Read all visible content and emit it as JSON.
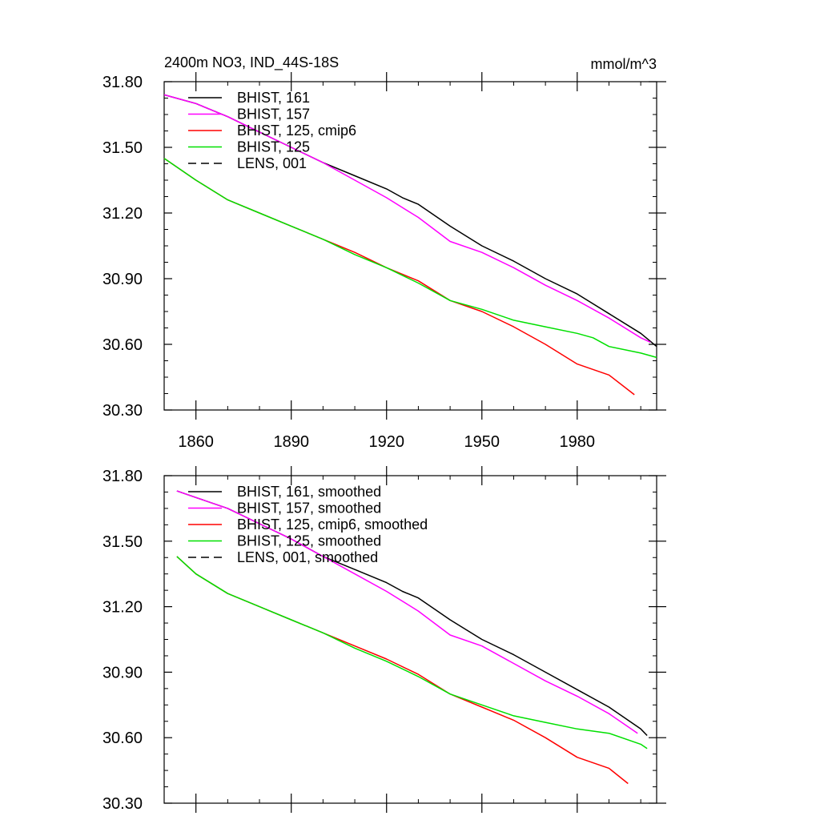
{
  "header": {
    "title": "2400m NO3, IND_44S-18S",
    "units": "mmol/m^3"
  },
  "colors": {
    "BHIST_161": "#000000",
    "BHIST_157": "#ff00ff",
    "BHIST_125_cmip6": "#ff0000",
    "BHIST_125": "#00e000",
    "LENS_001": "#000000"
  },
  "chart_data": [
    {
      "type": "line",
      "title": "",
      "xlabel": "",
      "ylabel": "",
      "xlim": [
        1850,
        2005
      ],
      "ylim": [
        30.3,
        31.8
      ],
      "xticks": [
        1860,
        1890,
        1920,
        1950,
        1980
      ],
      "xtick_labels": [
        "1860",
        "1890",
        "1920",
        "1950",
        "1980"
      ],
      "yticks": [
        30.3,
        30.6,
        30.9,
        31.2,
        31.5,
        31.8
      ],
      "ytick_labels": [
        "30.30",
        "30.60",
        "30.90",
        "31.20",
        "31.50",
        "31.80"
      ],
      "grid": false,
      "legend_position": "top-left",
      "series": [
        {
          "name": "BHIST, 161",
          "color": "#000000",
          "dash": "solid",
          "x": [
            1850,
            1860,
            1870,
            1880,
            1890,
            1900,
            1910,
            1920,
            1925,
            1930,
            1940,
            1950,
            1960,
            1970,
            1980,
            1990,
            2000,
            2005
          ],
          "y": [
            31.74,
            31.7,
            31.64,
            31.57,
            31.5,
            31.43,
            31.37,
            31.31,
            31.27,
            31.24,
            31.14,
            31.05,
            30.98,
            30.9,
            30.83,
            30.74,
            30.65,
            30.59
          ]
        },
        {
          "name": "BHIST, 157",
          "color": "#ff00ff",
          "dash": "solid",
          "x": [
            1850,
            1860,
            1870,
            1880,
            1890,
            1900,
            1910,
            1920,
            1930,
            1940,
            1950,
            1960,
            1970,
            1980,
            1990,
            2000,
            2003
          ],
          "y": [
            31.74,
            31.7,
            31.64,
            31.57,
            31.5,
            31.43,
            31.35,
            31.27,
            31.18,
            31.07,
            31.02,
            30.95,
            30.87,
            30.8,
            30.72,
            30.63,
            30.61
          ]
        },
        {
          "name": "BHIST, 125, cmip6",
          "color": "#ff0000",
          "dash": "solid",
          "x": [
            1850,
            1860,
            1870,
            1880,
            1890,
            1900,
            1910,
            1920,
            1930,
            1940,
            1950,
            1960,
            1970,
            1980,
            1990,
            1998
          ],
          "y": [
            31.45,
            31.35,
            31.26,
            31.2,
            31.14,
            31.08,
            31.02,
            30.95,
            30.89,
            30.8,
            30.75,
            30.68,
            30.6,
            30.51,
            30.46,
            30.37
          ]
        },
        {
          "name": "BHIST, 125",
          "color": "#00e000",
          "dash": "solid",
          "x": [
            1850,
            1860,
            1870,
            1880,
            1890,
            1900,
            1910,
            1920,
            1930,
            1940,
            1945,
            1950,
            1960,
            1970,
            1980,
            1985,
            1990,
            2000,
            2005
          ],
          "y": [
            31.45,
            31.35,
            31.26,
            31.2,
            31.14,
            31.08,
            31.01,
            30.95,
            30.88,
            30.8,
            30.78,
            30.76,
            30.71,
            30.68,
            30.65,
            30.63,
            30.59,
            30.56,
            30.54
          ]
        },
        {
          "name": "LENS, 001",
          "color": "#000000",
          "dash": "dashed",
          "x": [],
          "y": []
        }
      ]
    },
    {
      "type": "line",
      "title": "",
      "xlabel": "",
      "ylabel": "",
      "xlim": [
        1850,
        2005
      ],
      "ylim": [
        30.3,
        31.8
      ],
      "xticks": [
        1860,
        1890,
        1920,
        1950,
        1980
      ],
      "xtick_labels": [],
      "yticks": [
        30.3,
        30.6,
        30.9,
        31.2,
        31.5,
        31.8
      ],
      "ytick_labels": [
        "30.30",
        "30.60",
        "30.90",
        "31.20",
        "31.50",
        "31.80"
      ],
      "grid": false,
      "legend_position": "top-left",
      "series": [
        {
          "name": "BHIST, 161, smoothed",
          "color": "#000000",
          "dash": "solid",
          "x": [
            1854,
            1860,
            1870,
            1880,
            1890,
            1900,
            1910,
            1920,
            1925,
            1930,
            1940,
            1950,
            1960,
            1970,
            1980,
            1990,
            2000,
            2002
          ],
          "y": [
            31.73,
            31.7,
            31.65,
            31.58,
            31.51,
            31.43,
            31.37,
            31.31,
            31.27,
            31.24,
            31.14,
            31.05,
            30.98,
            30.9,
            30.82,
            30.74,
            30.64,
            30.61
          ]
        },
        {
          "name": "BHIST, 157, smoothed",
          "color": "#ff00ff",
          "dash": "solid",
          "x": [
            1854,
            1860,
            1870,
            1880,
            1890,
            1900,
            1910,
            1920,
            1930,
            1940,
            1950,
            1960,
            1970,
            1980,
            1990,
            1999
          ],
          "y": [
            31.73,
            31.7,
            31.65,
            31.58,
            31.51,
            31.43,
            31.35,
            31.27,
            31.18,
            31.07,
            31.02,
            30.94,
            30.86,
            30.79,
            30.71,
            30.62
          ]
        },
        {
          "name": "BHIST, 125, cmip6, smoothed",
          "color": "#ff0000",
          "dash": "solid",
          "x": [
            1854,
            1860,
            1870,
            1880,
            1890,
            1900,
            1910,
            1920,
            1930,
            1940,
            1950,
            1960,
            1970,
            1980,
            1990,
            1996
          ],
          "y": [
            31.43,
            31.35,
            31.26,
            31.2,
            31.14,
            31.08,
            31.02,
            30.96,
            30.89,
            30.8,
            30.74,
            30.68,
            30.6,
            30.51,
            30.46,
            30.39
          ]
        },
        {
          "name": "BHIST, 125, smoothed",
          "color": "#00e000",
          "dash": "solid",
          "x": [
            1854,
            1860,
            1870,
            1880,
            1890,
            1900,
            1910,
            1920,
            1930,
            1940,
            1950,
            1960,
            1970,
            1980,
            1990,
            2000,
            2002
          ],
          "y": [
            31.43,
            31.35,
            31.26,
            31.2,
            31.14,
            31.08,
            31.01,
            30.95,
            30.88,
            30.8,
            30.75,
            30.7,
            30.67,
            30.64,
            30.62,
            30.57,
            30.55
          ]
        },
        {
          "name": "LENS, 001, smoothed",
          "color": "#000000",
          "dash": "dashed",
          "x": [],
          "y": []
        }
      ]
    }
  ]
}
